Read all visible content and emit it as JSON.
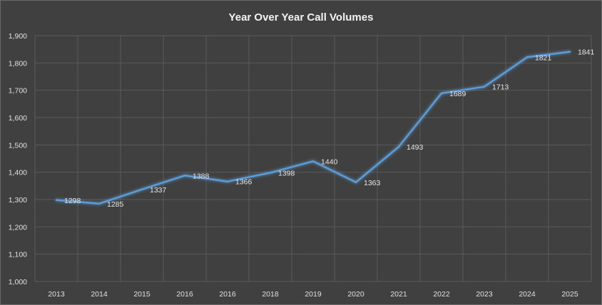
{
  "chart_data": {
    "type": "line",
    "title": "Year Over Year Call Volumes",
    "xlabel": "",
    "ylabel": "",
    "categories": [
      "2013",
      "2014",
      "2015",
      "2016",
      "2016",
      "2018",
      "2019",
      "2020",
      "2021",
      "2022",
      "2023",
      "2024",
      "2025"
    ],
    "series": [
      {
        "values": [
          1298,
          1285,
          1337,
          1388,
          1366,
          1398,
          1440,
          1363,
          1493,
          1689,
          1713,
          1821,
          1841
        ],
        "data_labels": [
          "1298",
          "1285",
          "1337",
          "1388",
          "1366",
          "1398",
          "1440",
          "1363",
          "1493",
          "1689",
          "1713",
          "1821",
          "1841"
        ]
      }
    ],
    "ylim": [
      1000,
      1900
    ],
    "y_ticks": [
      1000,
      1100,
      1200,
      1300,
      1400,
      1500,
      1600,
      1700,
      1800,
      1900
    ],
    "y_tick_labels": [
      "1,000",
      "1,100",
      "1,200",
      "1,300",
      "1,400",
      "1,500",
      "1,600",
      "1,700",
      "1,800",
      "1,900"
    ],
    "grid": true,
    "legend": "none",
    "colors": {
      "background": "#404040",
      "line": "#5b9bd5",
      "grid": "#5a5a5a",
      "text": "#e0e0e0"
    }
  }
}
